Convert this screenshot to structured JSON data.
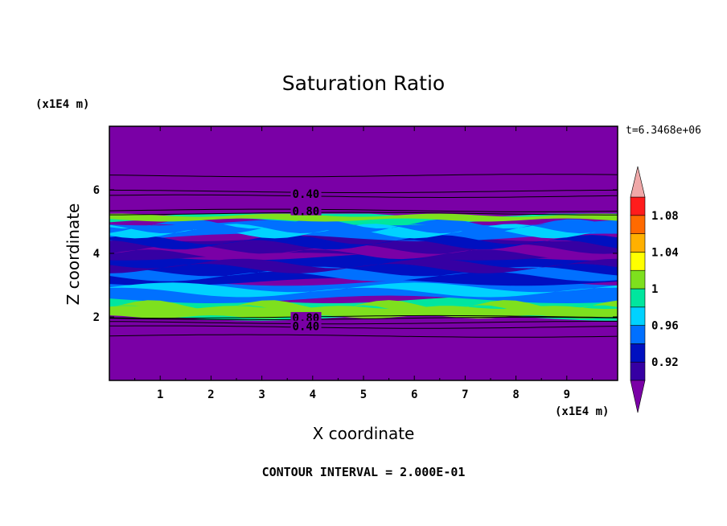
{
  "chart_data": {
    "type": "heatmap",
    "title": "Saturation Ratio",
    "xlabel": "X coordinate",
    "ylabel": "Z coordinate",
    "x_unit": "(x1E4 m)",
    "y_unit": "(x1E4 m)",
    "time_label": "t=6.3468e+06",
    "footer": "CONTOUR INTERVAL = 2.000E-01",
    "xlim": [
      0,
      10
    ],
    "ylim": [
      0,
      8
    ],
    "x_ticks": [
      "1",
      "2",
      "3",
      "4",
      "5",
      "6",
      "7",
      "8",
      "9"
    ],
    "y_ticks": [
      "2",
      "4",
      "6"
    ],
    "colorbar": {
      "labels": [
        "1.08",
        "1.04",
        "1",
        "0.96",
        "0.92"
      ],
      "levels": [
        0.9,
        0.92,
        0.94,
        0.96,
        0.98,
        1.0,
        1.02,
        1.04,
        1.06,
        1.08,
        1.1
      ],
      "colors": [
        "#7a00a6",
        "#3600a3",
        "#0010c0",
        "#0070ff",
        "#00d2ff",
        "#00e69e",
        "#7ee01e",
        "#ffff00",
        "#ffb000",
        "#ff6a00",
        "#ff1c1c",
        "#f0a8a8"
      ]
    },
    "contour_labels": [
      {
        "text": "0.40",
        "x": 3.6,
        "z": 5.85
      },
      {
        "text": "0.80",
        "x": 3.6,
        "z": 5.3
      },
      {
        "text": "0.80",
        "x": 3.6,
        "z": 1.95
      },
      {
        "text": "0.40",
        "x": 3.6,
        "z": 1.68
      }
    ],
    "bands": [
      {
        "z0": 0,
        "z1": 2.0,
        "level": 0.6,
        "color": "#7a00a6"
      },
      {
        "z0": 2.0,
        "z1": 2.55,
        "level": 0.99,
        "color": "#00e69e"
      },
      {
        "z0": 2.55,
        "z1": 3.1,
        "level": 0.95,
        "color": "#0070ff"
      },
      {
        "z0": 3.1,
        "z1": 3.9,
        "level": 0.93,
        "color": "#0010c0"
      },
      {
        "z0": 3.9,
        "z1": 4.5,
        "level": 0.92,
        "color": "#3600a3"
      },
      {
        "z0": 4.5,
        "z1": 5.0,
        "level": 0.95,
        "color": "#0070ff"
      },
      {
        "z0": 5.0,
        "z1": 5.25,
        "level": 0.99,
        "color": "#00e69e"
      },
      {
        "z0": 5.25,
        "z1": 8,
        "level": 0.5,
        "color": "#7a00a6"
      }
    ],
    "contour_lines_z": [
      1.4,
      1.68,
      1.82,
      1.95,
      2.0,
      5.25,
      5.35,
      5.8,
      5.95,
      6.45
    ],
    "colors": {
      "background": "#7a00a6",
      "line": "#000000"
    }
  }
}
